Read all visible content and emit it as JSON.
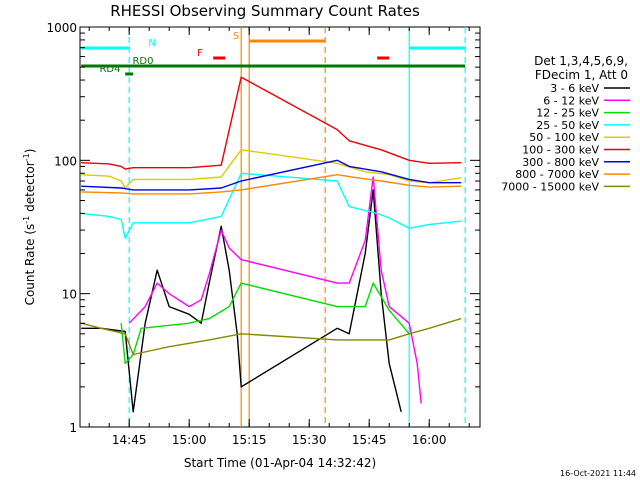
{
  "chart_data": {
    "type": "line",
    "title": "RHESSI Observing Summary Count Rates",
    "xlabel": "Start Time (01-Apr-04 14:32:42)",
    "ylabel": "Count Rate (s⁻¹ detector⁻¹)",
    "ylabel_main": "Count Rate (s",
    "ylabel_sup1": "-1",
    "ylabel_mid": " detector",
    "ylabel_sup2": "-1",
    "ylabel_end": ")",
    "y_scale": "log",
    "ylim": [
      1,
      1000
    ],
    "xlim": [
      "14:32:42",
      "16:12:42"
    ],
    "x_ticks": [
      "14:45",
      "15:00",
      "15:15",
      "15:30",
      "15:45",
      "16:00"
    ],
    "y_ticks": [
      "1",
      "10",
      "100",
      "1000"
    ],
    "timestamp": "16-Oct-2021 11:44",
    "legend_header": [
      "Det 1,3,4,5,6,9,",
      "FDecim 1, Att 0"
    ],
    "series": [
      {
        "name": "3 - 6 keV",
        "color": "#000000",
        "points": [
          [
            "14:33",
            5.5
          ],
          [
            "14:38",
            5.5
          ],
          [
            "14:44",
            5.2
          ],
          [
            "14:46",
            1.3
          ],
          [
            "14:49",
            6
          ],
          [
            "14:52",
            15
          ],
          [
            "14:55",
            8
          ],
          [
            "15:00",
            7
          ],
          [
            "15:03",
            6
          ],
          [
            "15:05",
            12
          ],
          [
            "15:08",
            32
          ],
          [
            "15:10",
            15
          ],
          [
            "15:12",
            5
          ],
          [
            "15:13",
            2
          ],
          [
            "15:37",
            5.5
          ],
          [
            "15:40",
            5
          ],
          [
            "15:44",
            20
          ],
          [
            "15:46",
            60
          ],
          [
            "15:48",
            10
          ],
          [
            "15:50",
            3
          ],
          [
            "15:53",
            1.3
          ]
        ]
      },
      {
        "name": "6 - 12 keV",
        "color": "#ff00ff",
        "points": [
          [
            "14:45",
            6
          ],
          [
            "14:49",
            8
          ],
          [
            "14:52",
            12
          ],
          [
            "14:55",
            10
          ],
          [
            "15:00",
            8
          ],
          [
            "15:03",
            9
          ],
          [
            "15:05",
            14
          ],
          [
            "15:08",
            30
          ],
          [
            "15:10",
            22
          ],
          [
            "15:13",
            18
          ],
          [
            "15:37",
            12
          ],
          [
            "15:40",
            12
          ],
          [
            "15:44",
            25
          ],
          [
            "15:46",
            75
          ],
          [
            "15:48",
            15
          ],
          [
            "15:50",
            8
          ],
          [
            "15:55",
            6
          ],
          [
            "15:57",
            3
          ],
          [
            "15:58",
            1.5
          ]
        ]
      },
      {
        "name": "12 - 25 keV",
        "color": "#00dd00",
        "points": [
          [
            "14:43",
            6
          ],
          [
            "14:44",
            3
          ],
          [
            "14:46",
            3.5
          ],
          [
            "14:48",
            5.5
          ],
          [
            "15:00",
            6
          ],
          [
            "15:05",
            6.5
          ],
          [
            "15:10",
            8
          ],
          [
            "15:13",
            12
          ],
          [
            "15:37",
            8
          ],
          [
            "15:44",
            8
          ],
          [
            "15:46",
            12
          ],
          [
            "15:50",
            7.5
          ],
          [
            "15:55",
            5
          ]
        ]
      },
      {
        "name": "25 - 50 keV",
        "color": "#00ffff",
        "points": [
          [
            "14:33",
            40
          ],
          [
            "14:40",
            38
          ],
          [
            "14:43",
            36
          ],
          [
            "14:44",
            26
          ],
          [
            "14:46",
            34
          ],
          [
            "15:00",
            34
          ],
          [
            "15:08",
            38
          ],
          [
            "15:13",
            80
          ],
          [
            "15:37",
            70
          ],
          [
            "15:40",
            45
          ],
          [
            "15:47",
            40
          ],
          [
            "15:50",
            37
          ],
          [
            "15:55",
            31
          ],
          [
            "16:00",
            33
          ],
          [
            "16:08",
            35
          ]
        ]
      },
      {
        "name": "50 - 100 keV",
        "color": "#ddcc00",
        "points": [
          [
            "14:33",
            78
          ],
          [
            "14:40",
            76
          ],
          [
            "14:43",
            70
          ],
          [
            "14:44",
            62
          ],
          [
            "14:46",
            72
          ],
          [
            "15:00",
            72
          ],
          [
            "15:08",
            75
          ],
          [
            "15:13",
            120
          ],
          [
            "15:37",
            95
          ],
          [
            "15:44",
            82
          ],
          [
            "15:50",
            78
          ],
          [
            "15:55",
            70
          ],
          [
            "16:00",
            68
          ],
          [
            "16:08",
            74
          ]
        ]
      },
      {
        "name": "100 - 300 keV",
        "color": "#ee0000",
        "points": [
          [
            "14:33",
            96
          ],
          [
            "14:40",
            94
          ],
          [
            "14:43",
            90
          ],
          [
            "14:44",
            86
          ],
          [
            "14:46",
            88
          ],
          [
            "15:00",
            88
          ],
          [
            "15:08",
            92
          ],
          [
            "15:13",
            420
          ],
          [
            "15:37",
            170
          ],
          [
            "15:40",
            140
          ],
          [
            "15:48",
            120
          ],
          [
            "15:55",
            100
          ],
          [
            "16:00",
            95
          ],
          [
            "16:08",
            96
          ]
        ]
      },
      {
        "name": "300 - 800 keV",
        "color": "#0000ee",
        "points": [
          [
            "14:33",
            64
          ],
          [
            "14:43",
            62
          ],
          [
            "14:46",
            60
          ],
          [
            "15:00",
            60
          ],
          [
            "15:08",
            62
          ],
          [
            "15:13",
            70
          ],
          [
            "15:37",
            100
          ],
          [
            "15:40",
            90
          ],
          [
            "15:48",
            82
          ],
          [
            "15:55",
            72
          ],
          [
            "16:00",
            68
          ],
          [
            "16:08",
            68
          ]
        ]
      },
      {
        "name": "800 - 7000 keV",
        "color": "#ff8800",
        "points": [
          [
            "14:33",
            58
          ],
          [
            "14:43",
            57
          ],
          [
            "14:46",
            56
          ],
          [
            "15:00",
            56
          ],
          [
            "15:08",
            58
          ],
          [
            "15:13",
            60
          ],
          [
            "15:37",
            78
          ],
          [
            "15:42",
            74
          ],
          [
            "15:48",
            70
          ],
          [
            "15:55",
            65
          ],
          [
            "16:00",
            63
          ],
          [
            "16:08",
            64
          ]
        ]
      },
      {
        "name": "7000 - 15000 keV",
        "color": "#888800",
        "points": [
          [
            "14:33",
            6
          ],
          [
            "14:38",
            5.5
          ],
          [
            "14:44",
            5
          ],
          [
            "14:46",
            3.5
          ],
          [
            "14:55",
            4
          ],
          [
            "15:05",
            4.5
          ],
          [
            "15:13",
            5
          ],
          [
            "15:37",
            4.5
          ],
          [
            "15:44",
            4.5
          ],
          [
            "15:50",
            4.5
          ],
          [
            "15:55",
            5
          ],
          [
            "16:00",
            5.5
          ],
          [
            "16:08",
            6.5
          ]
        ]
      }
    ],
    "flag_bars": [
      {
        "label": "N",
        "color": "#00ffff",
        "segments": [
          [
            "14:33",
            "14:45"
          ],
          [
            "15:55",
            "16:09"
          ]
        ]
      },
      {
        "label": "S",
        "color": "#ff8800",
        "segments": [
          [
            "15:15",
            "15:34"
          ]
        ]
      },
      {
        "label": "F",
        "color": "#ee0000",
        "segments": [
          [
            "15:06",
            "15:09"
          ],
          [
            "15:47",
            "15:50"
          ]
        ]
      },
      {
        "label": "RD0",
        "color": "#007700",
        "segments": [
          [
            "14:33",
            "16:09"
          ]
        ]
      },
      {
        "label": "RD4",
        "color": "#007700",
        "segments": [
          [
            "14:44",
            "14:46"
          ]
        ]
      }
    ],
    "vertical_markers": [
      {
        "time": "14:45",
        "color": "#00ffff",
        "style": "dashed"
      },
      {
        "time": "15:55",
        "color": "#00ffff",
        "style": "solid"
      },
      {
        "time": "16:09",
        "color": "#00ffff",
        "style": "dashed"
      },
      {
        "time": "15:13",
        "color": "#ff8800",
        "style": "solid"
      },
      {
        "time": "15:15",
        "color": "#ff8800",
        "style": "solid"
      },
      {
        "time": "15:34",
        "color": "#ff8800",
        "style": "dashed"
      }
    ]
  }
}
